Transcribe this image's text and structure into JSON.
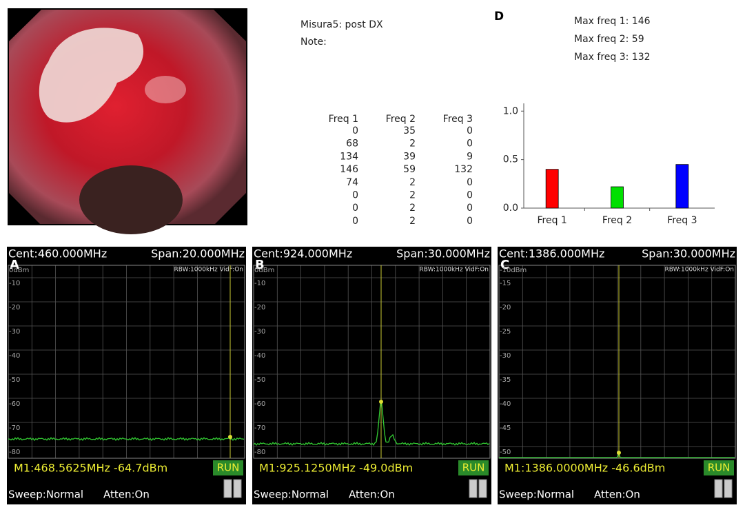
{
  "info": {
    "measure": "Misura5: post DX",
    "note": "Note:"
  },
  "table": {
    "header": [
      "Freq 1",
      "Freq 2",
      "Freq 3"
    ],
    "rows": [
      [
        0,
        35,
        0
      ],
      [
        68,
        2,
        0
      ],
      [
        134,
        39,
        9
      ],
      [
        146,
        59,
        132
      ],
      [
        74,
        2,
        0
      ],
      [
        0,
        2,
        0
      ],
      [
        0,
        2,
        0
      ],
      [
        0,
        2,
        0
      ]
    ]
  },
  "max_panel": {
    "label": "D",
    "lines": [
      "Max freq 1: 146",
      "Max freq 2: 59",
      "Max freq 3: 132"
    ]
  },
  "chart_data": {
    "type": "bar",
    "categories": [
      "Freq 1",
      "Freq 2",
      "Freq 3"
    ],
    "values": [
      0.4,
      0.22,
      0.45
    ],
    "colors": [
      "#ff0000",
      "#00e000",
      "#0000ff"
    ],
    "ylim": [
      0,
      1.08
    ],
    "yticks": [
      {
        "value": 0,
        "label": "0.0"
      },
      {
        "value": 0.5,
        "label": "0.5"
      },
      {
        "value": 1,
        "label": "1.0"
      }
    ]
  },
  "analyzers": [
    {
      "label": "A",
      "cent": "Cent:460.000MHz",
      "span": "Span:20.000MHz",
      "ref": "0dBm",
      "rbw": "RBW:1000kHz VidF:On",
      "scale": [
        -10,
        -20,
        -30,
        -40,
        -50,
        -60,
        -70,
        -80
      ],
      "marker": "M1:468.5625MHz -64.7dBm",
      "run": "RUN",
      "sweep": "Sweep:Normal",
      "atten": "Atten:On"
    },
    {
      "label": "B",
      "cent": "Cent:924.000MHz",
      "span": "Span:30.000MHz",
      "ref": "0dBm",
      "rbw": "RBW:1000kHz VidF:On",
      "scale": [
        -10,
        -20,
        -30,
        -40,
        -50,
        -60,
        -70,
        -80
      ],
      "marker": "M1:925.1250MHz -49.0dBm",
      "run": "RUN",
      "sweep": "Sweep:Normal",
      "atten": "Atten:On"
    },
    {
      "label": "C",
      "cent": "Cent:1386.000MHz",
      "span": "Span:30.000MHz",
      "ref": "-10dBm",
      "rbw": "RBW:1000kHz VidF:On",
      "scale": [
        -15,
        -20,
        -25,
        -30,
        -35,
        -40,
        -45,
        -50
      ],
      "marker": "M1:1386.0000MHz -46.6dBm",
      "run": "RUN",
      "sweep": "Sweep:Normal",
      "atten": "Atten:On"
    }
  ]
}
